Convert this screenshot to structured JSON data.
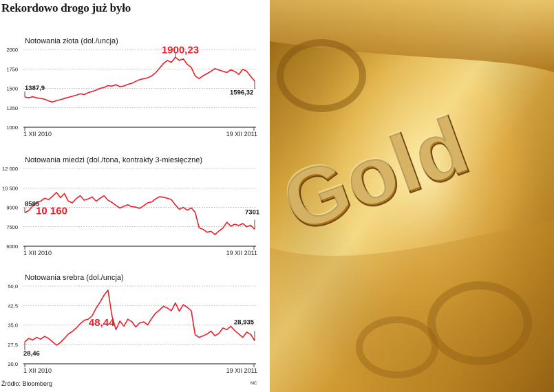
{
  "headline": "Rekordowo drogo już było",
  "source": "Źródło:  Bloomberg",
  "credit": "MC",
  "colors": {
    "series": "#e8202a",
    "axis": "#444444",
    "highlight_text": "#e8202a"
  },
  "photo": {
    "engraved_text": "Gold",
    "icon": "gold-bar-photo"
  },
  "chart_data": [
    {
      "type": "line",
      "title": "Notowania złota (dol./uncja)",
      "ylim": [
        1000,
        2000
      ],
      "yticks": [
        "2000",
        "1750",
        "1500",
        "1250",
        "1000"
      ],
      "ytick_values": [
        2000,
        1750,
        1500,
        1250,
        1000
      ],
      "x_start_label": "1 XII 2010",
      "x_end_label": "19 XII 2011",
      "grid": true,
      "annotations": {
        "start": "1387,9",
        "peak": "1900,23",
        "end": "1596,32"
      },
      "series": [
        {
          "values": [
            1388,
            1380,
            1392,
            1378,
            1372,
            1360,
            1340,
            1325,
            1342,
            1355,
            1370,
            1385,
            1398,
            1412,
            1430,
            1420,
            1445,
            1460,
            1478,
            1500,
            1512,
            1535,
            1528,
            1548,
            1522,
            1530,
            1552,
            1565,
            1590,
            1612,
            1625,
            1635,
            1660,
            1700,
            1760,
            1820,
            1860,
            1835,
            1900,
            1860,
            1880,
            1810,
            1770,
            1660,
            1625,
            1662,
            1690,
            1720,
            1755,
            1735,
            1720,
            1705,
            1738,
            1718,
            1680,
            1745,
            1720,
            1655,
            1596
          ]
        }
      ]
    },
    {
      "type": "line",
      "title": "Notowania miedzi (dol./tona, kontrakty 3-miesięczne)",
      "ylim": [
        6000,
        12000
      ],
      "yticks": [
        "12 000",
        "10 500",
        "9000",
        "7500",
        "6000"
      ],
      "ytick_values": [
        12000,
        10500,
        9000,
        7500,
        6000
      ],
      "x_start_label": "1 XII 2010",
      "x_end_label": "19 XII 2011",
      "grid": true,
      "annotations": {
        "start": "8585",
        "peak": "10 160",
        "end": "7301"
      },
      "series": [
        {
          "values": [
            8585,
            8750,
            9100,
            9350,
            9480,
            9700,
            9600,
            9850,
            10160,
            9750,
            10060,
            9480,
            9350,
            9680,
            9900,
            9550,
            9650,
            9800,
            9480,
            9700,
            9900,
            9550,
            9380,
            9150,
            8950,
            9080,
            9200,
            9050,
            9020,
            8920,
            9120,
            9350,
            9420,
            9650,
            9820,
            9780,
            9700,
            9600,
            9180,
            8850,
            9000,
            8780,
            8950,
            8620,
            7420,
            7300,
            7080,
            7150,
            6900,
            7180,
            7400,
            7850,
            7550,
            7700,
            7600,
            7750,
            7500,
            7620,
            7301
          ]
        }
      ]
    },
    {
      "type": "line",
      "title": "Notowania srebra (dol./uncja)",
      "ylim": [
        20,
        50
      ],
      "yticks": [
        "50,0",
        "42,5",
        "35,0",
        "27,5",
        "20,0"
      ],
      "ytick_values": [
        50,
        42.5,
        35,
        27.5,
        20
      ],
      "x_start_label": "1 XII 2010",
      "x_end_label": "19 XII 2011",
      "grid": true,
      "annotations": {
        "start": "28,46",
        "peak": "48,44",
        "end": "28,935"
      },
      "series": [
        {
          "values": [
            28.46,
            29.8,
            29.2,
            30.2,
            29.5,
            30.6,
            29.8,
            28.5,
            27.2,
            28.2,
            29.8,
            31.5,
            32.5,
            33.8,
            35.5,
            36.8,
            37.2,
            38.5,
            41.5,
            43.8,
            46.5,
            48.44,
            38.5,
            33.2,
            36.5,
            34.5,
            37.2,
            36.3,
            34.2,
            35.8,
            36.2,
            35.0,
            37.5,
            39.5,
            40.8,
            42.2,
            41.5,
            40.5,
            43.5,
            40.3,
            42.8,
            41.8,
            40.5,
            31.2,
            30.2,
            30.8,
            31.5,
            32.6,
            30.8,
            31.8,
            33.8,
            33.2,
            34.5,
            32.8,
            31.5,
            30.2,
            32.2,
            31.4,
            28.94
          ]
        }
      ]
    }
  ]
}
